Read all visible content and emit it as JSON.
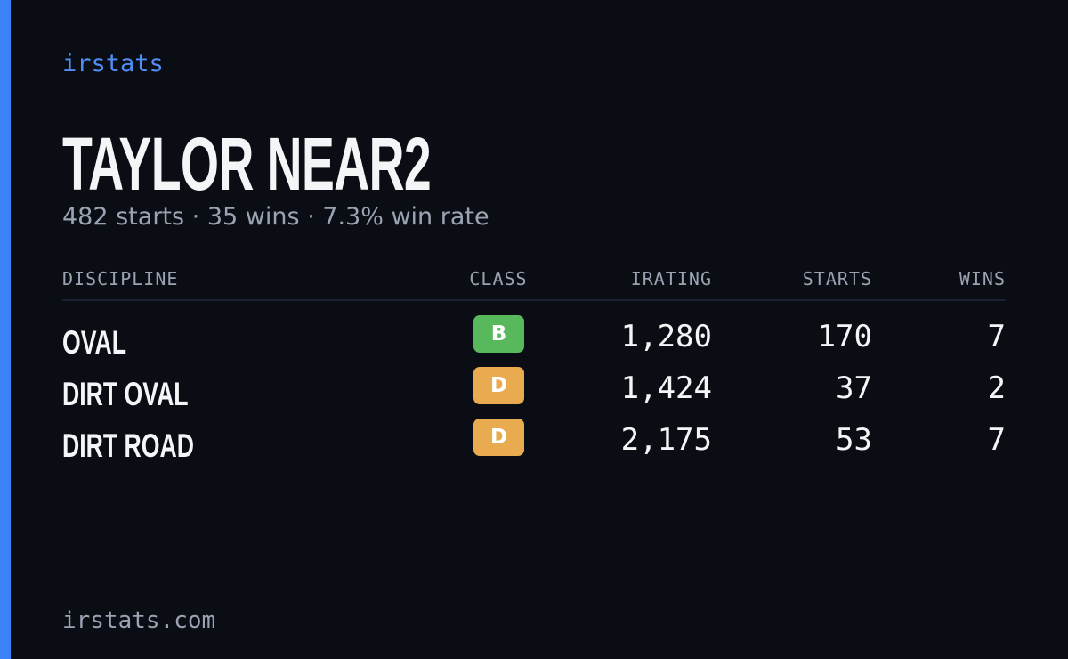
{
  "brand": "irstats",
  "driver": {
    "name": "TAYLOR NEAR2",
    "summary": "482 starts · 35 wins · 7.3% win rate"
  },
  "table": {
    "headers": [
      "DISCIPLINE",
      "CLASS",
      "IRATING",
      "STARTS",
      "WINS"
    ],
    "rows": [
      [
        "OVAL",
        "B",
        "1,280",
        "170",
        "7"
      ],
      [
        "DIRT OVAL",
        "D",
        "1,424",
        "37",
        "2"
      ],
      [
        "DIRT ROAD",
        "D",
        "2,175",
        "53",
        "7"
      ]
    ],
    "class_colors": {
      "B": "#58b85c",
      "D": "#e8ab4f"
    }
  },
  "footer": "irstats.com"
}
